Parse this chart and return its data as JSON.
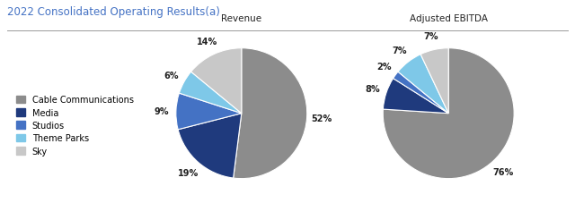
{
  "title_display": "2022 Consolidated Operating Results(a)",
  "title_color": "#4472c4",
  "title_fontsize": 8.5,
  "chart1_title": "Revenue",
  "chart2_title": "Adjusted EBITDA",
  "chart_title_fontsize": 7.5,
  "categories": [
    "Cable Communications",
    "Media",
    "Studios",
    "Theme Parks",
    "Sky"
  ],
  "colors": [
    "#8c8c8c",
    "#1f3a7d",
    "#4472c4",
    "#7ec8e8",
    "#c8c8c8"
  ],
  "rev_values": [
    52,
    19,
    9,
    6,
    14
  ],
  "ebitda_values": [
    76,
    8,
    2,
    7,
    7
  ],
  "rev_labels": [
    "52%",
    "19%",
    "9%",
    "6%",
    "14%"
  ],
  "ebitda_labels": [
    "76%",
    "8%",
    "2%",
    "7%",
    "7%"
  ],
  "background_color": "#ffffff",
  "label_fontsize": 7,
  "legend_fontsize": 7,
  "edge_color": "#ffffff",
  "edge_width": 0.8
}
